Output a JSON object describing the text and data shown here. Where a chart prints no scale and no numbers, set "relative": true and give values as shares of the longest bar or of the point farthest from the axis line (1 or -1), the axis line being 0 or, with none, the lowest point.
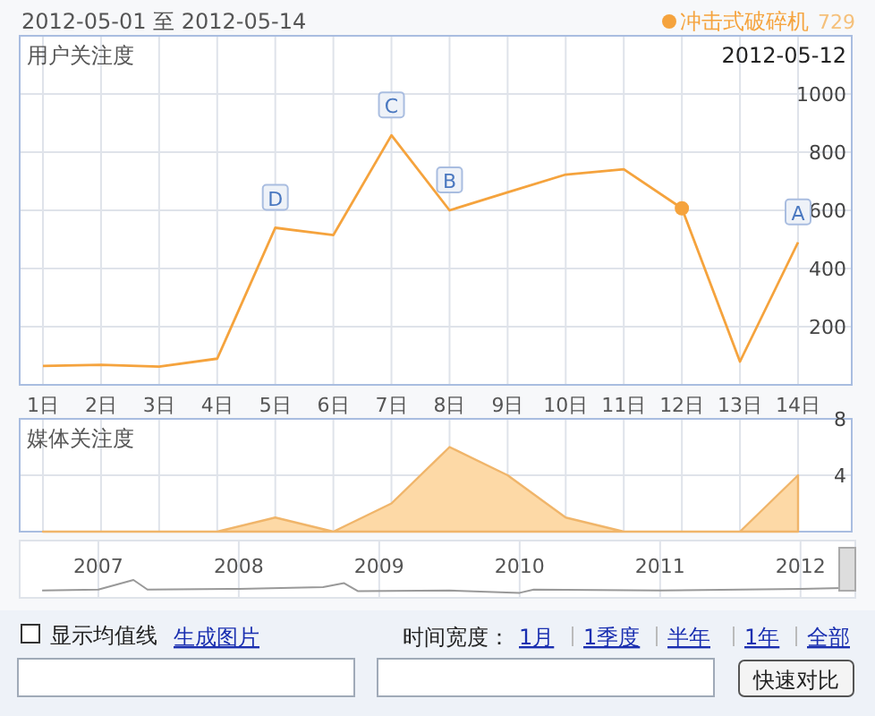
{
  "chart_data": [
    {
      "type": "line",
      "title": "用户关注度",
      "categories": [
        "1日",
        "2日",
        "3日",
        "4日",
        "5日",
        "6日",
        "7日",
        "8日",
        "9日",
        "10日",
        "11日",
        "12日",
        "13日",
        "14日"
      ],
      "series": [
        {
          "name": "冲击式破碎机",
          "color": "#f5a33d",
          "values": [
            65,
            69,
            63,
            90,
            540,
            515,
            858,
            600,
            662,
            723,
            741,
            607,
            80,
            490
          ]
        }
      ],
      "ylim": [
        0,
        1200
      ],
      "yticks": [
        200,
        400,
        600,
        800,
        1000
      ],
      "grid": true,
      "legend": "top right",
      "marker": "none",
      "annotations": [
        "2012-05-01 至 2012-05-14",
        "729",
        "2012-05-12",
        {
          "text": "D",
          "x": "5日",
          "y": 540
        },
        {
          "text": "C",
          "x": "7日",
          "y": 858
        },
        {
          "text": "B",
          "x": "8日",
          "y": 600
        },
        {
          "text": "A",
          "x": "14日",
          "y": 490
        }
      ]
    },
    {
      "type": "area",
      "title": "媒体关注度",
      "categories": [
        null,
        null,
        null,
        null,
        null,
        null,
        null,
        null,
        null,
        null,
        null,
        null,
        null,
        null
      ],
      "series": [
        {
          "color": "#fdd9a6",
          "values": [
            0,
            0,
            0,
            0,
            1,
            0,
            2,
            6,
            4,
            1,
            0,
            0,
            0,
            4
          ]
        }
      ],
      "ylim": [
        0,
        8
      ],
      "yticks": [
        4,
        8
      ],
      "grid": true,
      "tick_labels": "y"
    },
    {
      "type": "line",
      "relative": true,
      "x": [
        2006.6,
        2007.0,
        2007.25,
        2007.35,
        2008.0,
        2008.6,
        2008.75,
        2008.85,
        2009.5,
        2010.0,
        2010.1,
        2011.0,
        2012.0,
        2012.3
      ],
      "series": [
        {
          "color": "#999999",
          "values": [
            0.35,
            0.4,
            1.0,
            0.4,
            0.45,
            0.55,
            0.8,
            0.3,
            0.35,
            0.2,
            0.4,
            0.35,
            0.45,
            0.5
          ]
        }
      ],
      "xlim": [
        2006.44,
        2012.39
      ],
      "xticks": [
        2007,
        2008,
        2009,
        2010,
        2011,
        2012
      ],
      "grid": "x",
      "tick_labels": "x"
    },
    {
      "type": "other",
      "annotations": [
        "显示均值线",
        "生成图片",
        "时间宽度：",
        "1月",
        "1季度",
        "半年",
        "1年",
        "全部",
        "快速对比"
      ]
    }
  ]
}
